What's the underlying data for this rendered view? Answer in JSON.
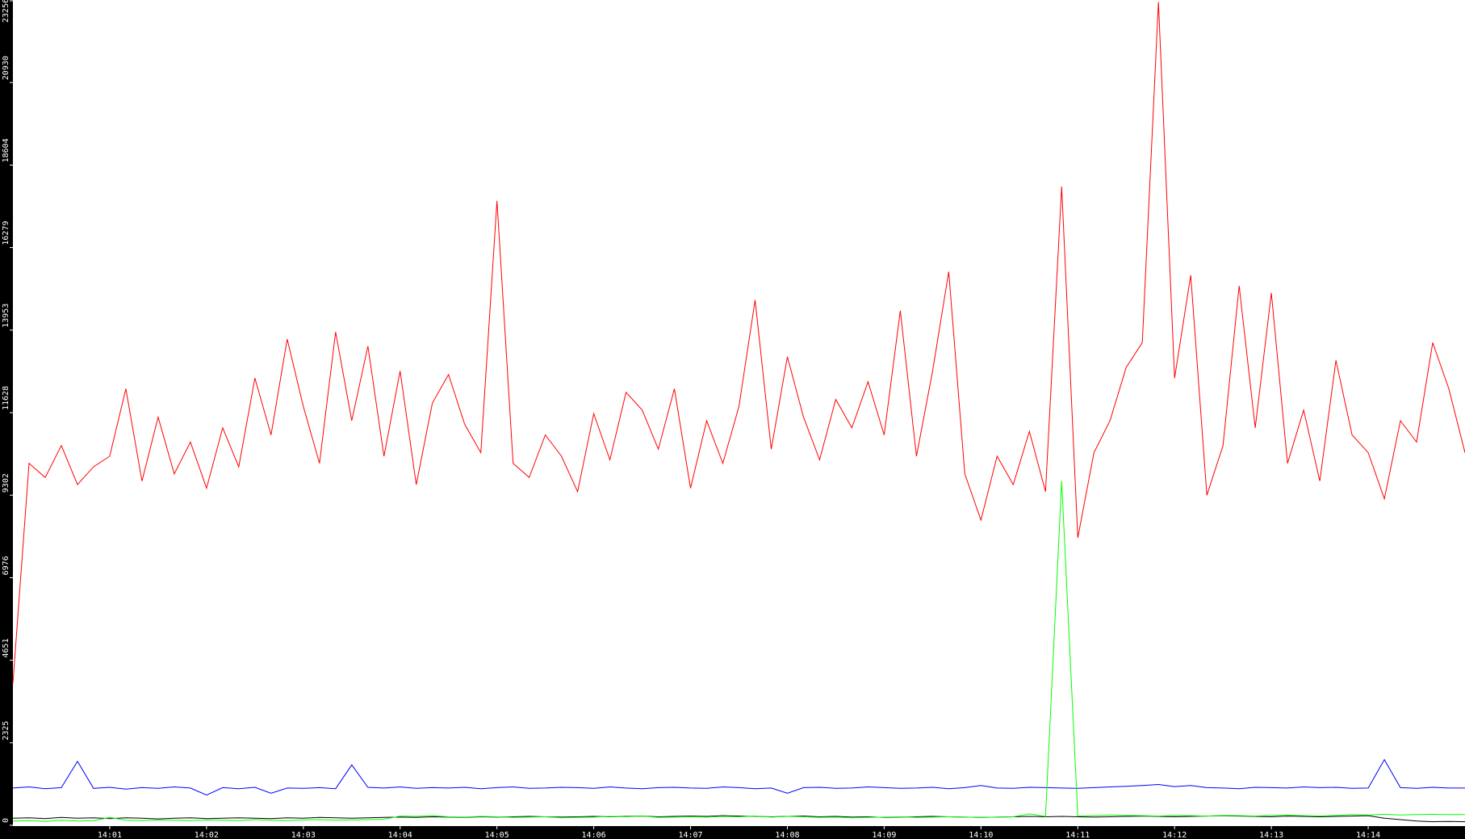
{
  "chart_data": {
    "type": "line",
    "title": "",
    "xlabel": "",
    "ylabel": "",
    "ylim": [
      0,
      23256
    ],
    "xlim": [
      "14:00:00",
      "14:15:00"
    ],
    "grid": false,
    "legend": "none",
    "y_ticks": [
      "0",
      "2325",
      "4651",
      "6976",
      "9302",
      "11628",
      "13953",
      "16279",
      "18604",
      "20930",
      "23256"
    ],
    "x_ticks": [
      "14:01",
      "14:02",
      "14:03",
      "14:04",
      "14:05",
      "14:06",
      "14:07",
      "14:08",
      "14:09",
      "14:10",
      "14:11",
      "14:12",
      "14:13",
      "14:14"
    ],
    "background": "#ffffff",
    "axis_background": "#000000",
    "x": [
      "14:00:00",
      "14:00:10",
      "14:00:20",
      "14:00:30",
      "14:00:40",
      "14:00:50",
      "14:01:00",
      "14:01:10",
      "14:01:20",
      "14:01:30",
      "14:01:40",
      "14:01:50",
      "14:02:00",
      "14:02:10",
      "14:02:20",
      "14:02:30",
      "14:02:40",
      "14:02:50",
      "14:03:00",
      "14:03:10",
      "14:03:20",
      "14:03:30",
      "14:03:40",
      "14:03:50",
      "14:04:00",
      "14:04:10",
      "14:04:20",
      "14:04:30",
      "14:04:40",
      "14:04:50",
      "14:05:00",
      "14:05:10",
      "14:05:20",
      "14:05:30",
      "14:05:40",
      "14:05:50",
      "14:06:00",
      "14:06:10",
      "14:06:20",
      "14:06:30",
      "14:06:40",
      "14:06:50",
      "14:07:00",
      "14:07:10",
      "14:07:20",
      "14:07:30",
      "14:07:40",
      "14:07:50",
      "14:08:00",
      "14:08:10",
      "14:08:20",
      "14:08:30",
      "14:08:40",
      "14:08:50",
      "14:09:00",
      "14:09:10",
      "14:09:20",
      "14:09:30",
      "14:09:40",
      "14:09:50",
      "14:10:00",
      "14:10:10",
      "14:10:20",
      "14:10:30",
      "14:10:40",
      "14:10:50",
      "14:11:00",
      "14:11:10",
      "14:11:20",
      "14:11:30",
      "14:11:40",
      "14:11:50",
      "14:12:00",
      "14:12:10",
      "14:12:20",
      "14:12:30",
      "14:12:40",
      "14:12:50",
      "14:13:00",
      "14:13:10",
      "14:13:20",
      "14:13:30",
      "14:13:40",
      "14:13:50",
      "14:14:00",
      "14:14:10",
      "14:14:20",
      "14:14:30",
      "14:14:40",
      "14:14:50",
      "14:15:00"
    ],
    "series": [
      {
        "color": "#ff0000",
        "values": [
          4000,
          10200,
          9800,
          10700,
          9600,
          10100,
          10400,
          12300,
          9700,
          11500,
          9900,
          10800,
          9500,
          11200,
          10100,
          12600,
          11000,
          13700,
          11800,
          10200,
          13900,
          11400,
          13500,
          10400,
          12800,
          9600,
          11900,
          12700,
          11300,
          10500,
          17600,
          10200,
          9800,
          11000,
          10400,
          9400,
          11600,
          10300,
          12200,
          11700,
          10600,
          12300,
          9500,
          11400,
          10200,
          11800,
          14800,
          10600,
          13200,
          11500,
          10300,
          12000,
          11200,
          12500,
          11000,
          14500,
          10400,
          12800,
          15600,
          9900,
          8600,
          10400,
          9600,
          11100,
          9400,
          18000,
          8100,
          10500,
          11400,
          12900,
          13600,
          23200,
          12600,
          15500,
          9300,
          10700,
          15200,
          11200,
          15000,
          10200,
          11700,
          9700,
          13100,
          11000,
          10500,
          9200,
          11400,
          10800,
          13600,
          12300,
          10500
        ]
      },
      {
        "color": "#0000ff",
        "values": [
          1050,
          1080,
          1030,
          1060,
          1800,
          1040,
          1070,
          1020,
          1060,
          1040,
          1080,
          1050,
          850,
          1060,
          1030,
          1070,
          900,
          1050,
          1040,
          1060,
          1030,
          1700,
          1070,
          1050,
          1080,
          1040,
          1060,
          1050,
          1070,
          1030,
          1060,
          1080,
          1040,
          1050,
          1070,
          1060,
          1040,
          1080,
          1050,
          1030,
          1060,
          1070,
          1050,
          1040,
          1080,
          1060,
          1030,
          1050,
          900,
          1060,
          1070,
          1040,
          1050,
          1080,
          1060,
          1040,
          1050,
          1070,
          1030,
          1060,
          1120,
          1050,
          1040,
          1070,
          1060,
          1050,
          1040,
          1060,
          1080,
          1100,
          1120,
          1150,
          1090,
          1120,
          1060,
          1050,
          1030,
          1070,
          1060,
          1050,
          1080,
          1060,
          1070,
          1040,
          1050,
          1850,
          1060,
          1040,
          1070,
          1050,
          1050
        ]
      },
      {
        "color": "#000000",
        "values": [
          200,
          210,
          190,
          220,
          200,
          210,
          190,
          210,
          200,
          180,
          200,
          210,
          190,
          200,
          210,
          200,
          190,
          210,
          200,
          220,
          210,
          200,
          210,
          220,
          230,
          220,
          240,
          230,
          220,
          240,
          230,
          240,
          250,
          240,
          230,
          240,
          250,
          240,
          250,
          260,
          240,
          250,
          260,
          250,
          270,
          260,
          250,
          240,
          250,
          260,
          240,
          250,
          230,
          240,
          220,
          230,
          240,
          250,
          240,
          230,
          220,
          230,
          240,
          250,
          240,
          250,
          240,
          230,
          240,
          250,
          260,
          250,
          240,
          250,
          260,
          270,
          260,
          250,
          240,
          260,
          250,
          240,
          250,
          260,
          270,
          200,
          160,
          120,
          100,
          110,
          100
        ]
      },
      {
        "color": "#00ff00",
        "values": [
          120,
          130,
          110,
          140,
          120,
          130,
          220,
          140,
          130,
          150,
          140,
          130,
          150,
          140,
          130,
          160,
          140,
          130,
          150,
          160,
          140,
          150,
          160,
          170,
          260,
          250,
          270,
          240,
          230,
          250,
          240,
          220,
          230,
          240,
          210,
          220,
          230,
          250,
          240,
          260,
          220,
          230,
          240,
          230,
          250,
          240,
          260,
          230,
          250,
          240,
          220,
          230,
          210,
          220,
          230,
          240,
          220,
          230,
          240,
          230,
          220,
          230,
          240,
          320,
          250,
          9700,
          260,
          270,
          290,
          280,
          270,
          260,
          280,
          270,
          260,
          280,
          270,
          260,
          280,
          290,
          270,
          260,
          280,
          300,
          290,
          310,
          290,
          300,
          310,
          300,
          300
        ]
      }
    ]
  }
}
